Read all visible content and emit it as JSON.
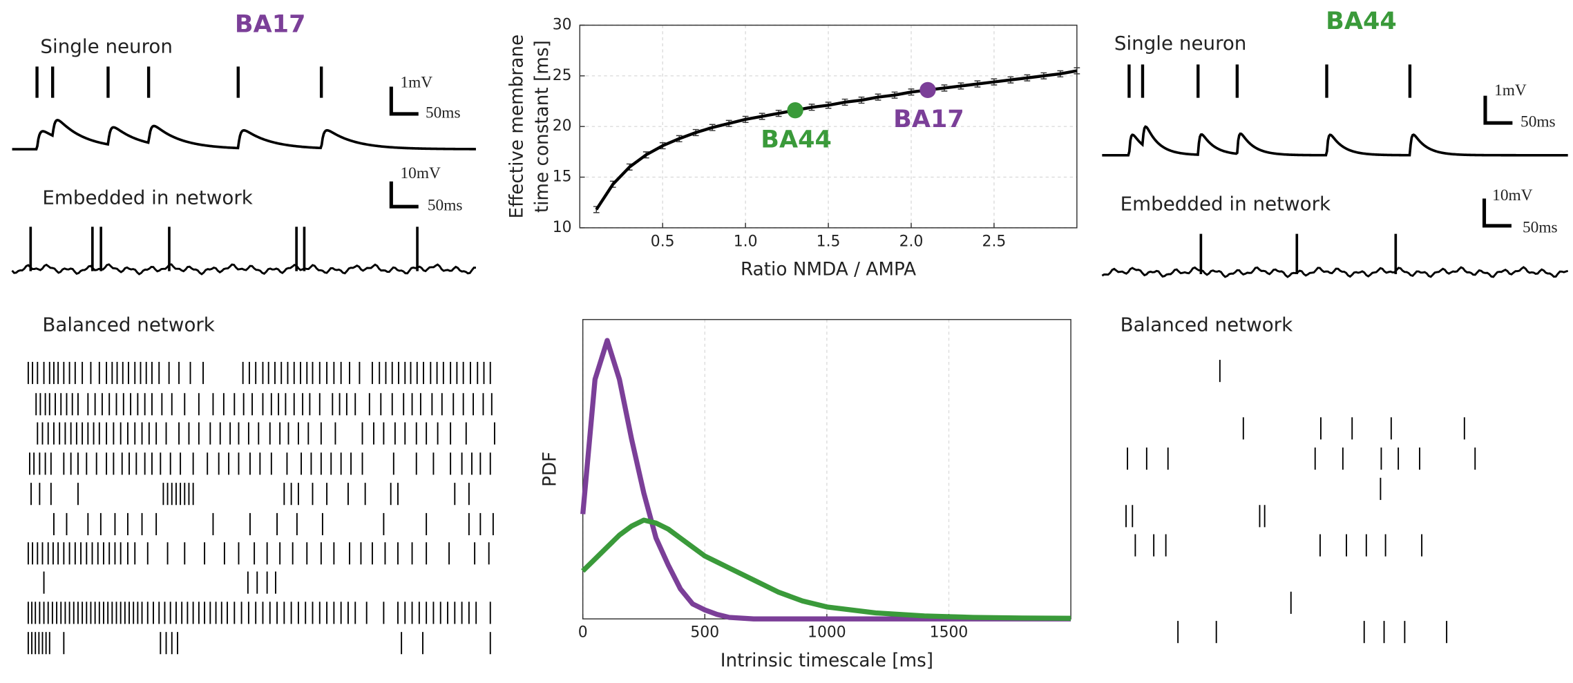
{
  "chart_data": [
    {
      "type": "line",
      "xlabel": "Ratio NMDA / AMPA",
      "ylabel": [
        "Effective membrane",
        "time constant [ms]"
      ],
      "x": [
        0.1,
        0.2,
        0.3,
        0.4,
        0.5,
        0.6,
        0.7,
        0.8,
        0.9,
        1.0,
        1.1,
        1.2,
        1.3,
        1.4,
        1.5,
        1.6,
        1.7,
        1.8,
        1.9,
        2.0,
        2.1,
        2.2,
        2.3,
        2.4,
        2.5,
        2.6,
        2.7,
        2.8,
        2.9,
        3.0
      ],
      "series": [
        {
          "color": "#000000",
          "values": [
            11.8,
            14.3,
            16.0,
            17.2,
            18.1,
            18.8,
            19.4,
            19.9,
            20.3,
            20.7,
            21.0,
            21.3,
            21.6,
            21.9,
            22.1,
            22.4,
            22.6,
            22.9,
            23.1,
            23.4,
            23.6,
            23.8,
            24.0,
            24.2,
            24.4,
            24.6,
            24.8,
            25.0,
            25.2,
            25.5
          ],
          "errors": [
            0.3,
            0.3,
            0.3,
            0.3,
            0.3,
            0.3,
            0.3,
            0.3,
            0.3,
            0.3,
            0.3,
            0.3,
            0.3,
            0.3,
            0.3,
            0.3,
            0.3,
            0.3,
            0.3,
            0.3,
            0.3,
            0.3,
            0.3,
            0.3,
            0.3,
            0.3,
            0.3,
            0.3,
            0.3,
            0.3
          ]
        }
      ],
      "xlim": [
        0,
        3
      ],
      "ylim": [
        10,
        30
      ],
      "xticks": [
        0.5,
        {
          "value": 1,
          "label": "1.0"
        },
        1.5,
        {
          "value": 2,
          "label": "2.0"
        },
        2.5
      ],
      "yticks": [
        10,
        15,
        20,
        25,
        30
      ],
      "grid": true,
      "annotations": [
        {
          "text": "BA44",
          "x": 1.3,
          "y": 21.6,
          "color": "#3a9a3a"
        },
        {
          "text": "BA17",
          "x": 2.1,
          "y": 23.6,
          "color": "#7b3f98"
        }
      ]
    },
    {
      "type": "line",
      "xlabel": "Intrinsic timescale [ms]",
      "ylabel": "PDF",
      "x": [
        0,
        50,
        100,
        150,
        200,
        250,
        300,
        350,
        400,
        450,
        500,
        550,
        600,
        700,
        800,
        900,
        1000,
        1200,
        1400,
        1600,
        1800,
        2000
      ],
      "series": [
        {
          "color": "#7b3f98",
          "values": [
            0.35,
            0.8,
            0.93,
            0.8,
            0.6,
            0.42,
            0.27,
            0.18,
            0.1,
            0.05,
            0.03,
            0.015,
            0.005,
            0,
            0,
            0,
            0,
            0,
            0,
            0,
            0,
            0
          ]
        },
        {
          "color": "#3a9a3a",
          "values": [
            0.16,
            0.2,
            0.24,
            0.28,
            0.31,
            0.33,
            0.32,
            0.3,
            0.27,
            0.24,
            0.21,
            0.19,
            0.17,
            0.13,
            0.09,
            0.06,
            0.04,
            0.02,
            0.01,
            0.005,
            0.003,
            0.002
          ]
        }
      ],
      "xlim": [
        0,
        2000
      ],
      "ylim": [
        0,
        1
      ],
      "xticks": [
        0,
        500,
        1000,
        1500
      ],
      "grid": true
    }
  ],
  "panels": [
    {
      "title": "BA17",
      "color": "#7b3f98",
      "single_neuron": {
        "label": "Single neuron",
        "spikes": [
          35,
          57,
          135,
          192,
          318,
          435
        ],
        "scale_bar": [
          "1mV",
          "50ms"
        ]
      },
      "network": {
        "label": "Embedded in network",
        "spikes": [
          26,
          113,
          125,
          221,
          400,
          411,
          570
        ],
        "scale_bar": [
          "10mV",
          "50ms"
        ]
      },
      "raster": {
        "label": "Balanced network",
        "rows": [
          [
            0,
            6,
            13,
            22,
            30,
            36,
            42,
            50,
            58,
            66,
            76,
            88,
            100,
            110,
            118,
            125,
            133,
            141,
            150,
            158,
            166,
            174,
            184,
            198,
            212,
            228,
            246,
            302,
            311,
            320,
            330,
            338,
            347,
            356,
            365,
            374,
            383,
            392,
            400,
            410,
            420,
            430,
            440,
            452,
            466,
            484,
            494,
            503,
            512,
            521,
            530,
            538,
            547,
            556,
            566,
            575,
            584,
            594,
            603,
            612,
            622,
            632,
            641,
            650
          ],
          [
            11,
            17,
            24,
            30,
            38,
            46,
            54,
            62,
            70,
            84,
            94,
            104,
            114,
            124,
            134,
            144,
            154,
            164,
            174,
            188,
            202,
            220,
            240,
            260,
            275,
            290,
            303,
            315,
            330,
            342,
            352,
            362,
            374,
            386,
            396,
            410,
            428,
            438,
            448,
            460,
            480,
            496,
            512,
            528,
            540,
            552,
            568,
            582,
            598,
            612,
            626,
            640,
            652
          ],
          [
            13,
            20,
            28,
            36,
            44,
            52,
            60,
            68,
            76,
            84,
            92,
            100,
            110,
            120,
            130,
            140,
            150,
            160,
            170,
            180,
            194,
            212,
            226,
            240,
            256,
            270,
            284,
            296,
            310,
            324,
            340,
            354,
            366,
            380,
            394,
            412,
            432,
            470,
            486,
            500,
            516,
            530,
            546,
            560,
            576,
            594,
            616,
            656
          ],
          [
            2,
            8,
            16,
            24,
            32,
            50,
            60,
            70,
            82,
            96,
            110,
            120,
            132,
            142,
            152,
            164,
            174,
            186,
            200,
            214,
            232,
            252,
            268,
            282,
            296,
            312,
            326,
            342,
            364,
            384,
            398,
            412,
            426,
            440,
            454,
            470,
            514,
            546,
            570,
            594,
            610,
            624,
            636,
            650
          ],
          [
            4,
            16,
            32,
            70,
            190,
            196,
            202,
            208,
            214,
            220,
            226,
            232,
            360,
            370,
            380,
            400,
            420,
            450,
            474,
            510,
            520,
            600,
            620
          ],
          [
            36,
            54,
            84,
            102,
            122,
            140,
            160,
            180,
            260,
            312,
            350,
            378,
            414,
            500,
            560,
            620,
            636,
            654
          ],
          [
            0,
            6,
            13,
            20,
            28,
            35,
            42,
            50,
            58,
            66,
            74,
            82,
            90,
            98,
            106,
            114,
            122,
            130,
            140,
            150,
            168,
            196,
            220,
            248,
            276,
            296,
            318,
            336,
            354,
            372,
            392,
            412,
            430,
            452,
            468,
            484,
            502,
            520,
            540,
            560,
            592,
            628,
            648
          ],
          [
            22,
            309,
            322,
            336,
            348
          ],
          [
            0,
            5,
            10,
            16,
            22,
            28,
            34,
            40,
            46,
            52,
            58,
            64,
            70,
            76,
            82,
            88,
            94,
            100,
            106,
            112,
            118,
            124,
            130,
            136,
            142,
            148,
            154,
            160,
            168,
            176,
            184,
            192,
            200,
            208,
            216,
            224,
            232,
            240,
            248,
            256,
            264,
            272,
            280,
            290,
            300,
            310,
            320,
            330,
            340,
            350,
            360,
            370,
            380,
            390,
            400,
            410,
            420,
            430,
            440,
            450,
            460,
            476,
            500,
            520,
            530,
            540,
            550,
            560,
            570,
            580,
            590,
            600,
            610,
            620,
            630,
            650
          ],
          [
            0,
            5,
            10,
            15,
            20,
            25,
            30,
            50,
            186,
            194,
            202,
            210,
            525,
            555,
            650
          ]
        ]
      }
    },
    {
      "title": "BA44",
      "color": "#3a9a3a",
      "single_neuron": {
        "label": "Single neuron",
        "spikes": [
          38,
          57,
          135,
          190,
          316,
          433
        ],
        "scale_bar": [
          "1mV",
          "50ms"
        ]
      },
      "network": {
        "label": "Embedded in network",
        "spikes": [
          139,
          274,
          413
        ],
        "scale_bar": [
          "10mV",
          "50ms"
        ]
      },
      "raster": {
        "label": "Balanced network",
        "rows": [
          [
            143
          ],
          [],
          [
            176,
            285,
            329,
            384,
            487
          ],
          [
            13,
            40,
            70,
            277,
            316,
            370,
            394,
            424,
            502
          ],
          [
            369
          ],
          [
            11,
            20,
            199,
            206
          ],
          [
            24,
            50,
            67,
            284,
            321,
            349,
            376,
            427
          ],
          [],
          [
            243
          ],
          [
            84,
            138,
            346,
            374,
            403,
            462
          ]
        ]
      }
    }
  ]
}
